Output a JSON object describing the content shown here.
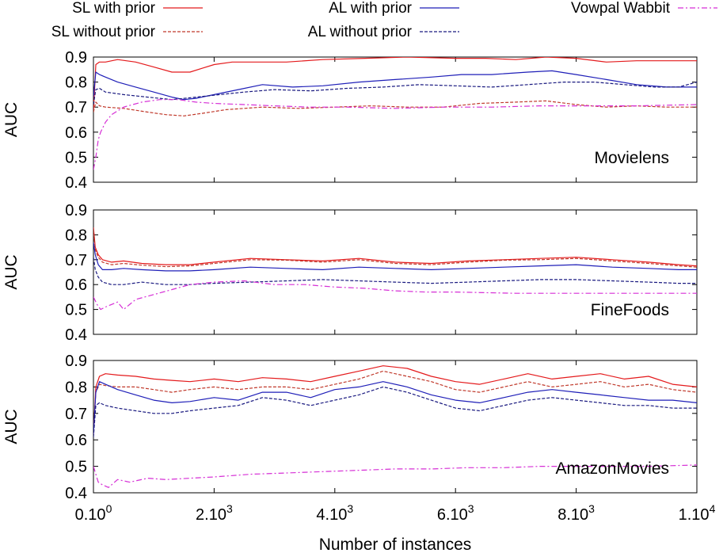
{
  "chart_data": {
    "type": "line",
    "xlabel": "Number of instances",
    "ylabel": "AUC",
    "xlim": [
      0,
      10000
    ],
    "x_ticks": [
      {
        "value": 0,
        "base": "0.10",
        "sup": "0"
      },
      {
        "value": 2000,
        "base": "2.10",
        "sup": "3"
      },
      {
        "value": 4000,
        "base": "4.10",
        "sup": "3"
      },
      {
        "value": 6000,
        "base": "6.10",
        "sup": "3"
      },
      {
        "value": 8000,
        "base": "8.10",
        "sup": "3"
      },
      {
        "value": 10000,
        "base": "1.10",
        "sup": "4"
      }
    ],
    "legend": [
      {
        "key": "sl_prior",
        "label": "SL with prior",
        "color": "#e41a1c",
        "dash": ""
      },
      {
        "key": "al_prior",
        "label": "AL with prior",
        "color": "#1f1fb8",
        "dash": ""
      },
      {
        "key": "vw",
        "label": "Vowpal Wabbit",
        "color": "#d62fd6",
        "dash": "7,3,2,3"
      },
      {
        "key": "sl_noprior",
        "label": "SL without prior",
        "color": "#c0392b",
        "dash": "4,2"
      },
      {
        "key": "al_noprior",
        "label": "AL without prior",
        "color": "#1a1a80",
        "dash": "4,2"
      }
    ],
    "panels": [
      {
        "name": "Movielens",
        "ylim": [
          0.4,
          0.9
        ],
        "yticks": [
          "0.4",
          "0.5",
          "0.6",
          "0.7",
          "0.8",
          "0.9"
        ],
        "series": [
          {
            "key": "sl_prior",
            "x": [
              0,
              40,
              100,
              200,
              400,
              700,
              1000,
              1300,
              1600,
              1800,
              2000,
              2300,
              2700,
              3200,
              3800,
              4500,
              5200,
              6000,
              6500,
              7000,
              7500,
              8000,
              8500,
              9000,
              9500,
              10000
            ],
            "y": [
              0.68,
              0.87,
              0.88,
              0.88,
              0.89,
              0.88,
              0.86,
              0.84,
              0.84,
              0.855,
              0.87,
              0.88,
              0.88,
              0.88,
              0.89,
              0.895,
              0.9,
              0.895,
              0.895,
              0.89,
              0.9,
              0.895,
              0.88,
              0.885,
              0.885,
              0.885
            ]
          },
          {
            "key": "sl_noprior",
            "x": [
              0,
              40,
              100,
              200,
              500,
              900,
              1200,
              1500,
              1800,
              2200,
              2800,
              3400,
              4000,
              4600,
              5200,
              5800,
              6400,
              7000,
              7500,
              8000,
              8500,
              9000,
              9500,
              10000
            ],
            "y": [
              0.68,
              0.72,
              0.705,
              0.7,
              0.695,
              0.68,
              0.67,
              0.665,
              0.675,
              0.69,
              0.7,
              0.695,
              0.7,
              0.705,
              0.7,
              0.7,
              0.715,
              0.72,
              0.725,
              0.71,
              0.7,
              0.705,
              0.7,
              0.7
            ]
          },
          {
            "key": "al_prior",
            "x": [
              0,
              40,
              100,
              200,
              400,
              700,
              1000,
              1300,
              1500,
              1700,
              2000,
              2400,
              2800,
              3300,
              3800,
              4400,
              5000,
              5600,
              6100,
              6600,
              7200,
              7600,
              8000,
              8500,
              9000,
              9500,
              10000
            ],
            "y": [
              0.74,
              0.84,
              0.83,
              0.82,
              0.8,
              0.78,
              0.76,
              0.74,
              0.73,
              0.735,
              0.75,
              0.77,
              0.79,
              0.78,
              0.785,
              0.8,
              0.81,
              0.82,
              0.83,
              0.83,
              0.84,
              0.845,
              0.83,
              0.81,
              0.79,
              0.78,
              0.78
            ]
          },
          {
            "key": "al_noprior",
            "x": [
              0,
              40,
              100,
              200,
              500,
              900,
              1300,
              1700,
              2100,
              2500,
              3000,
              3600,
              4200,
              4800,
              5400,
              6000,
              6600,
              7200,
              7800,
              8300,
              8800,
              9300,
              9700,
              10000
            ],
            "y": [
              0.71,
              0.77,
              0.775,
              0.76,
              0.75,
              0.74,
              0.73,
              0.74,
              0.75,
              0.76,
              0.77,
              0.765,
              0.775,
              0.78,
              0.79,
              0.785,
              0.78,
              0.79,
              0.8,
              0.8,
              0.79,
              0.78,
              0.78,
              0.8
            ]
          },
          {
            "key": "vw",
            "x": [
              0,
              40,
              80,
              120,
              200,
              300,
              500,
              800,
              1100,
              1400,
              1700,
              2000,
              2500,
              3000,
              3600,
              4200,
              5000,
              5800,
              6600,
              7400,
              8200,
              9000,
              10000
            ],
            "y": [
              0.45,
              0.5,
              0.57,
              0.6,
              0.64,
              0.67,
              0.7,
              0.72,
              0.73,
              0.73,
              0.72,
              0.715,
              0.71,
              0.705,
              0.7,
              0.7,
              0.695,
              0.7,
              0.7,
              0.705,
              0.705,
              0.705,
              0.71
            ]
          }
        ]
      },
      {
        "name": "FineFoods",
        "ylim": [
          0.4,
          0.9
        ],
        "yticks": [
          "0.4",
          "0.5",
          "0.6",
          "0.7",
          "0.8",
          "0.9"
        ],
        "series": [
          {
            "key": "sl_prior",
            "x": [
              0,
              30,
              80,
              150,
              300,
              500,
              800,
              1200,
              1600,
              2000,
              2600,
              3200,
              3800,
              4400,
              5000,
              5600,
              6200,
              6800,
              7400,
              8000,
              8600,
              9200,
              9700,
              10000
            ],
            "y": [
              0.83,
              0.75,
              0.72,
              0.7,
              0.69,
              0.695,
              0.685,
              0.68,
              0.68,
              0.69,
              0.705,
              0.7,
              0.695,
              0.705,
              0.69,
              0.685,
              0.695,
              0.7,
              0.705,
              0.71,
              0.7,
              0.69,
              0.68,
              0.675
            ]
          },
          {
            "key": "sl_noprior",
            "x": [
              0,
              30,
              80,
              150,
              300,
              500,
              800,
              1200,
              1600,
              2000,
              2600,
              3200,
              3800,
              4400,
              5000,
              5600,
              6200,
              6800,
              7400,
              8000,
              8600,
              9200,
              9700,
              10000
            ],
            "y": [
              0.82,
              0.74,
              0.71,
              0.69,
              0.68,
              0.685,
              0.678,
              0.672,
              0.675,
              0.685,
              0.7,
              0.698,
              0.69,
              0.7,
              0.685,
              0.68,
              0.69,
              0.698,
              0.7,
              0.705,
              0.695,
              0.685,
              0.675,
              0.67
            ]
          },
          {
            "key": "al_prior",
            "x": [
              0,
              30,
              80,
              150,
              300,
              500,
              800,
              1200,
              1600,
              2000,
              2600,
              3200,
              3800,
              4400,
              5000,
              5600,
              6200,
              6800,
              7400,
              8000,
              8600,
              9200,
              9700,
              10000
            ],
            "y": [
              0.77,
              0.72,
              0.68,
              0.66,
              0.66,
              0.665,
              0.66,
              0.655,
              0.655,
              0.66,
              0.67,
              0.665,
              0.66,
              0.67,
              0.665,
              0.66,
              0.665,
              0.67,
              0.675,
              0.68,
              0.67,
              0.665,
              0.66,
              0.66
            ]
          },
          {
            "key": "al_noprior",
            "x": [
              0,
              30,
              80,
              150,
              300,
              500,
              800,
              1200,
              1600,
              2000,
              2600,
              3200,
              3800,
              4400,
              5000,
              5600,
              6200,
              6800,
              7400,
              8000,
              8600,
              9200,
              9700,
              10000
            ],
            "y": [
              0.71,
              0.66,
              0.63,
              0.61,
              0.6,
              0.6,
              0.61,
              0.6,
              0.6,
              0.605,
              0.61,
              0.615,
              0.62,
              0.615,
              0.61,
              0.605,
              0.61,
              0.615,
              0.62,
              0.62,
              0.615,
              0.61,
              0.605,
              0.605
            ]
          },
          {
            "key": "vw",
            "x": [
              0,
              60,
              120,
              200,
              300,
              400,
              500,
              700,
              1000,
              1300,
              1600,
              2000,
              2500,
              3000,
              3500,
              4000,
              4500,
              5000,
              5500,
              6000,
              7000,
              8000,
              9000,
              10000
            ],
            "y": [
              0.55,
              0.52,
              0.5,
              0.51,
              0.52,
              0.53,
              0.5,
              0.54,
              0.56,
              0.58,
              0.6,
              0.61,
              0.615,
              0.6,
              0.6,
              0.59,
              0.585,
              0.575,
              0.57,
              0.57,
              0.565,
              0.565,
              0.565,
              0.565
            ]
          }
        ]
      },
      {
        "name": "AmazonMovies",
        "ylim": [
          0.4,
          0.9
        ],
        "yticks": [
          "0.4",
          "0.5",
          "0.6",
          "0.7",
          "0.8",
          "0.9"
        ],
        "series": [
          {
            "key": "sl_prior",
            "x": [
              0,
              40,
              100,
              200,
              400,
              700,
              1000,
              1300,
              1600,
              2000,
              2400,
              2800,
              3200,
              3600,
              4000,
              4400,
              4800,
              5200,
              5600,
              6000,
              6400,
              6800,
              7200,
              7600,
              8000,
              8400,
              8800,
              9200,
              9600,
              10000
            ],
            "y": [
              0.62,
              0.8,
              0.84,
              0.85,
              0.845,
              0.84,
              0.83,
              0.825,
              0.82,
              0.83,
              0.82,
              0.835,
              0.83,
              0.82,
              0.84,
              0.86,
              0.88,
              0.87,
              0.84,
              0.82,
              0.81,
              0.83,
              0.85,
              0.83,
              0.84,
              0.85,
              0.83,
              0.84,
              0.81,
              0.8
            ]
          },
          {
            "key": "sl_noprior",
            "x": [
              0,
              40,
              100,
              200,
              400,
              700,
              1000,
              1300,
              1600,
              2000,
              2400,
              2800,
              3200,
              3600,
              4000,
              4400,
              4800,
              5200,
              5600,
              6000,
              6400,
              6800,
              7200,
              7600,
              8000,
              8400,
              8800,
              9200,
              9600,
              10000
            ],
            "y": [
              0.63,
              0.78,
              0.81,
              0.805,
              0.8,
              0.8,
              0.79,
              0.78,
              0.79,
              0.8,
              0.79,
              0.8,
              0.8,
              0.79,
              0.81,
              0.83,
              0.86,
              0.84,
              0.82,
              0.79,
              0.78,
              0.8,
              0.82,
              0.8,
              0.81,
              0.82,
              0.8,
              0.81,
              0.79,
              0.78
            ]
          },
          {
            "key": "al_prior",
            "x": [
              0,
              40,
              100,
              200,
              400,
              700,
              1000,
              1300,
              1600,
              2000,
              2400,
              2800,
              3200,
              3600,
              4000,
              4400,
              4800,
              5200,
              5600,
              6000,
              6400,
              6800,
              7200,
              7600,
              8000,
              8400,
              8800,
              9200,
              9600,
              10000
            ],
            "y": [
              0.62,
              0.78,
              0.82,
              0.81,
              0.79,
              0.77,
              0.75,
              0.74,
              0.745,
              0.76,
              0.75,
              0.78,
              0.78,
              0.76,
              0.79,
              0.8,
              0.82,
              0.8,
              0.77,
              0.75,
              0.74,
              0.76,
              0.78,
              0.79,
              0.78,
              0.77,
              0.76,
              0.75,
              0.75,
              0.74
            ]
          },
          {
            "key": "al_noprior",
            "x": [
              0,
              40,
              100,
              200,
              400,
              700,
              1000,
              1300,
              1600,
              2000,
              2400,
              2800,
              3200,
              3600,
              4000,
              4400,
              4800,
              5200,
              5600,
              6000,
              6400,
              6800,
              7200,
              7600,
              8000,
              8400,
              8800,
              9200,
              9600,
              10000
            ],
            "y": [
              0.61,
              0.73,
              0.74,
              0.73,
              0.72,
              0.71,
              0.7,
              0.7,
              0.71,
              0.72,
              0.73,
              0.76,
              0.75,
              0.73,
              0.75,
              0.77,
              0.8,
              0.78,
              0.75,
              0.72,
              0.71,
              0.73,
              0.75,
              0.76,
              0.75,
              0.74,
              0.73,
              0.73,
              0.72,
              0.72
            ]
          },
          {
            "key": "vw",
            "x": [
              0,
              40,
              80,
              150,
              250,
              400,
              600,
              900,
              1200,
              1600,
              2000,
              2600,
              3200,
              3800,
              4400,
              5000,
              5600,
              6200,
              6800,
              7400,
              8000,
              8600,
              9200,
              10000
            ],
            "y": [
              0.5,
              0.47,
              0.44,
              0.43,
              0.42,
              0.45,
              0.44,
              0.455,
              0.45,
              0.455,
              0.46,
              0.47,
              0.475,
              0.48,
              0.485,
              0.49,
              0.49,
              0.495,
              0.495,
              0.5,
              0.5,
              0.5,
              0.5,
              0.505
            ]
          }
        ]
      }
    ]
  }
}
